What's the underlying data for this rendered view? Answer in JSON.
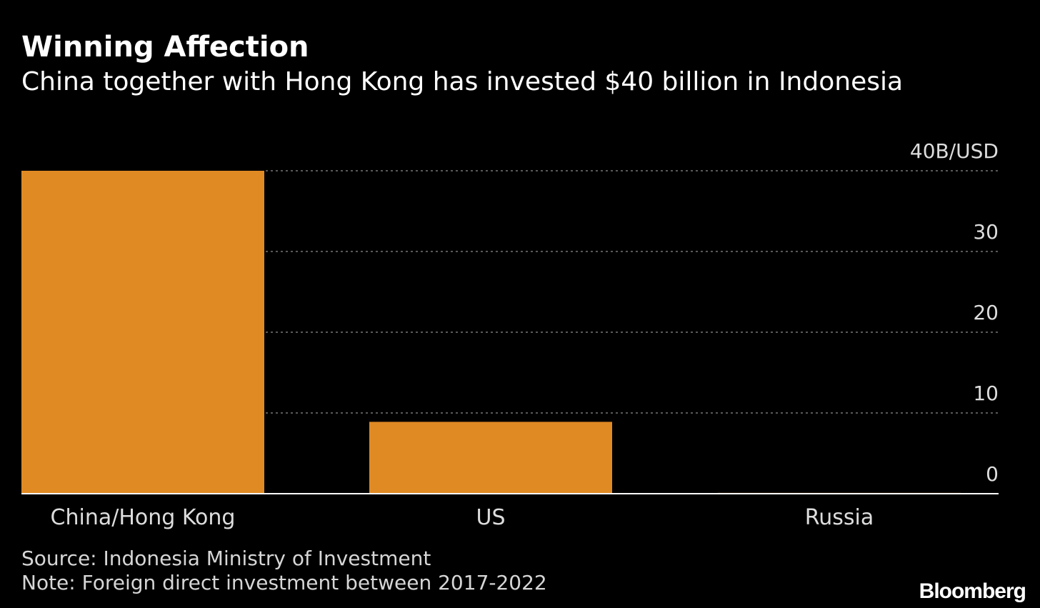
{
  "header": {
    "title": "Winning Affection",
    "subtitle": "China together with Hong Kong has invested $40 billion in Indonesia"
  },
  "chart_data": {
    "type": "bar",
    "categories": [
      "China/Hong Kong",
      "US",
      "Russia"
    ],
    "values": [
      40,
      8.9,
      0.1
    ],
    "ylabel": "40B/USD",
    "ylim": [
      0,
      40
    ],
    "yticks": [
      0,
      10,
      20,
      30,
      40
    ],
    "ytick_labels": [
      "0",
      "10",
      "20",
      "30",
      "40B/USD"
    ],
    "grid": true,
    "bar_color": "#e08a24",
    "gridline_color": "#777777",
    "axis_color": "#ffffff"
  },
  "footer": {
    "source": "Source: Indonesia Ministry of Investment",
    "note": "Note: Foreign direct investment between 2017-2022",
    "logo": "Bloomberg"
  }
}
